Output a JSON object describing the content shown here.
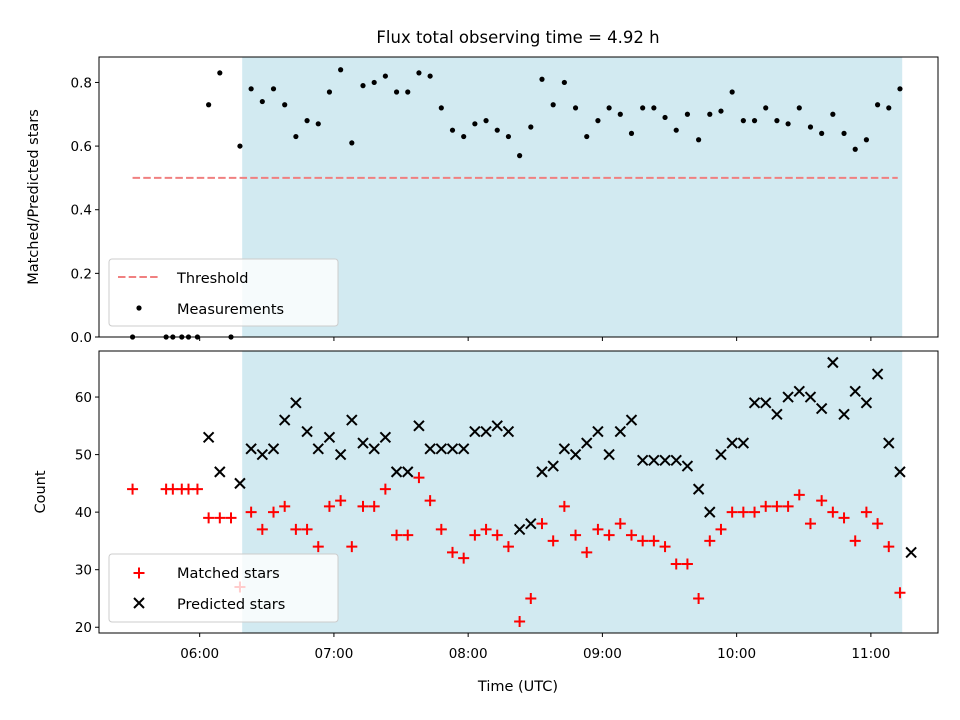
{
  "figure": {
    "title": "Flux total observing time = 4.92 h"
  },
  "chart_data": [
    {
      "type": "scatter",
      "panel": "top",
      "xlabel": "",
      "ylabel": "Matched/Predicted stars",
      "ylim": [
        0,
        0.88
      ],
      "yticks": [
        0.0,
        0.2,
        0.4,
        0.6,
        0.8
      ],
      "ytick_labels": [
        "0.0",
        "0.2",
        "0.4",
        "0.6",
        "0.8"
      ],
      "shaded_interval": {
        "x": [
          "06:19",
          "11:14"
        ],
        "color": "#add8e6"
      },
      "threshold": {
        "name": "Threshold",
        "y": 0.5,
        "x": [
          "05:30",
          "11:12"
        ],
        "color": "#f08080",
        "style": "dashed"
      },
      "legend": {
        "position": "lower-left",
        "entries": [
          "Threshold",
          "Measurements"
        ]
      },
      "series": [
        {
          "name": "Measurements",
          "marker": "dot",
          "color": "#000000",
          "points": [
            [
              "05:30",
              0.0
            ],
            [
              "05:45",
              0.0
            ],
            [
              "05:48",
              0.0
            ],
            [
              "05:52",
              0.0
            ],
            [
              "05:55",
              0.0
            ],
            [
              "05:59",
              0.0
            ],
            [
              "06:04",
              0.73
            ],
            [
              "06:09",
              0.83
            ],
            [
              "06:14",
              0.0
            ],
            [
              "06:18",
              0.6
            ],
            [
              "06:23",
              0.78
            ],
            [
              "06:28",
              0.74
            ],
            [
              "06:33",
              0.78
            ],
            [
              "06:38",
              0.73
            ],
            [
              "06:43",
              0.63
            ],
            [
              "06:48",
              0.68
            ],
            [
              "06:53",
              0.67
            ],
            [
              "06:58",
              0.77
            ],
            [
              "07:03",
              0.84
            ],
            [
              "07:08",
              0.61
            ],
            [
              "07:13",
              0.79
            ],
            [
              "07:18",
              0.8
            ],
            [
              "07:23",
              0.82
            ],
            [
              "07:28",
              0.77
            ],
            [
              "07:33",
              0.77
            ],
            [
              "07:38",
              0.83
            ],
            [
              "07:43",
              0.82
            ],
            [
              "07:48",
              0.72
            ],
            [
              "07:53",
              0.65
            ],
            [
              "07:58",
              0.63
            ],
            [
              "08:03",
              0.67
            ],
            [
              "08:08",
              0.68
            ],
            [
              "08:13",
              0.65
            ],
            [
              "08:18",
              0.63
            ],
            [
              "08:23",
              0.57
            ],
            [
              "08:28",
              0.66
            ],
            [
              "08:33",
              0.81
            ],
            [
              "08:38",
              0.73
            ],
            [
              "08:43",
              0.8
            ],
            [
              "08:48",
              0.72
            ],
            [
              "08:53",
              0.63
            ],
            [
              "08:58",
              0.68
            ],
            [
              "09:03",
              0.72
            ],
            [
              "09:08",
              0.7
            ],
            [
              "09:13",
              0.64
            ],
            [
              "09:18",
              0.72
            ],
            [
              "09:23",
              0.72
            ],
            [
              "09:28",
              0.69
            ],
            [
              "09:33",
              0.65
            ],
            [
              "09:38",
              0.7
            ],
            [
              "09:43",
              0.62
            ],
            [
              "09:48",
              0.7
            ],
            [
              "09:53",
              0.71
            ],
            [
              "09:58",
              0.77
            ],
            [
              "10:03",
              0.68
            ],
            [
              "10:08",
              0.68
            ],
            [
              "10:13",
              0.72
            ],
            [
              "10:18",
              0.68
            ],
            [
              "10:23",
              0.67
            ],
            [
              "10:28",
              0.72
            ],
            [
              "10:33",
              0.66
            ],
            [
              "10:38",
              0.64
            ],
            [
              "10:43",
              0.7
            ],
            [
              "10:48",
              0.64
            ],
            [
              "10:53",
              0.59
            ],
            [
              "10:58",
              0.62
            ],
            [
              "11:03",
              0.73
            ],
            [
              "11:08",
              0.72
            ],
            [
              "11:13",
              0.78
            ]
          ]
        }
      ]
    },
    {
      "type": "scatter",
      "panel": "bottom",
      "xlabel": "Time (UTC)",
      "ylabel": "Count",
      "xlim": [
        "05:15",
        "11:30"
      ],
      "ylim": [
        19,
        68
      ],
      "xticks": [
        "06:00",
        "07:00",
        "08:00",
        "09:00",
        "10:00",
        "11:00"
      ],
      "yticks": [
        20,
        30,
        40,
        50,
        60
      ],
      "ytick_labels": [
        "20",
        "30",
        "40",
        "50",
        "60"
      ],
      "shaded_interval": {
        "x": [
          "06:19",
          "11:14"
        ],
        "color": "#add8e6"
      },
      "legend": {
        "position": "lower-left",
        "entries": [
          "Matched stars",
          "Predicted stars"
        ]
      },
      "series": [
        {
          "name": "Matched stars",
          "marker": "plus",
          "color": "#ff0000",
          "points": [
            [
              "05:30",
              44
            ],
            [
              "05:45",
              44
            ],
            [
              "05:48",
              44
            ],
            [
              "05:52",
              44
            ],
            [
              "05:55",
              44
            ],
            [
              "05:59",
              44
            ],
            [
              "06:04",
              39
            ],
            [
              "06:09",
              39
            ],
            [
              "06:14",
              39
            ],
            [
              "06:18",
              27
            ],
            [
              "06:23",
              40
            ],
            [
              "06:28",
              37
            ],
            [
              "06:33",
              40
            ],
            [
              "06:38",
              41
            ],
            [
              "06:43",
              37
            ],
            [
              "06:48",
              37
            ],
            [
              "06:53",
              34
            ],
            [
              "06:58",
              41
            ],
            [
              "07:03",
              42
            ],
            [
              "07:08",
              34
            ],
            [
              "07:13",
              41
            ],
            [
              "07:18",
              41
            ],
            [
              "07:23",
              44
            ],
            [
              "07:28",
              36
            ],
            [
              "07:33",
              36
            ],
            [
              "07:38",
              46
            ],
            [
              "07:43",
              42
            ],
            [
              "07:48",
              37
            ],
            [
              "07:53",
              33
            ],
            [
              "07:58",
              32
            ],
            [
              "08:03",
              36
            ],
            [
              "08:08",
              37
            ],
            [
              "08:13",
              36
            ],
            [
              "08:18",
              34
            ],
            [
              "08:23",
              21
            ],
            [
              "08:28",
              25
            ],
            [
              "08:33",
              38
            ],
            [
              "08:38",
              35
            ],
            [
              "08:43",
              41
            ],
            [
              "08:48",
              36
            ],
            [
              "08:53",
              33
            ],
            [
              "08:58",
              37
            ],
            [
              "09:03",
              36
            ],
            [
              "09:08",
              38
            ],
            [
              "09:13",
              36
            ],
            [
              "09:18",
              35
            ],
            [
              "09:23",
              35
            ],
            [
              "09:28",
              34
            ],
            [
              "09:33",
              31
            ],
            [
              "09:38",
              31
            ],
            [
              "09:43",
              25
            ],
            [
              "09:48",
              35
            ],
            [
              "09:53",
              37
            ],
            [
              "09:58",
              40
            ],
            [
              "10:03",
              40
            ],
            [
              "10:08",
              40
            ],
            [
              "10:13",
              41
            ],
            [
              "10:18",
              41
            ],
            [
              "10:23",
              41
            ],
            [
              "10:28",
              43
            ],
            [
              "10:33",
              38
            ],
            [
              "10:38",
              42
            ],
            [
              "10:43",
              40
            ],
            [
              "10:48",
              39
            ],
            [
              "10:53",
              35
            ],
            [
              "10:58",
              40
            ],
            [
              "11:03",
              38
            ],
            [
              "11:08",
              34
            ],
            [
              "11:13",
              26
            ]
          ]
        },
        {
          "name": "Predicted stars",
          "marker": "x",
          "color": "#000000",
          "points": [
            [
              "06:04",
              53
            ],
            [
              "06:09",
              47
            ],
            [
              "06:18",
              45
            ],
            [
              "06:23",
              51
            ],
            [
              "06:28",
              50
            ],
            [
              "06:33",
              51
            ],
            [
              "06:38",
              56
            ],
            [
              "06:43",
              59
            ],
            [
              "06:48",
              54
            ],
            [
              "06:53",
              51
            ],
            [
              "06:58",
              53
            ],
            [
              "07:03",
              50
            ],
            [
              "07:08",
              56
            ],
            [
              "07:13",
              52
            ],
            [
              "07:18",
              51
            ],
            [
              "07:23",
              53
            ],
            [
              "07:28",
              47
            ],
            [
              "07:33",
              47
            ],
            [
              "07:38",
              55
            ],
            [
              "07:43",
              51
            ],
            [
              "07:48",
              51
            ],
            [
              "07:53",
              51
            ],
            [
              "07:58",
              51
            ],
            [
              "08:03",
              54
            ],
            [
              "08:08",
              54
            ],
            [
              "08:13",
              55
            ],
            [
              "08:18",
              54
            ],
            [
              "08:23",
              37
            ],
            [
              "08:28",
              38
            ],
            [
              "08:33",
              47
            ],
            [
              "08:38",
              48
            ],
            [
              "08:43",
              51
            ],
            [
              "08:48",
              50
            ],
            [
              "08:53",
              52
            ],
            [
              "08:58",
              54
            ],
            [
              "09:03",
              50
            ],
            [
              "09:08",
              54
            ],
            [
              "09:13",
              56
            ],
            [
              "09:18",
              49
            ],
            [
              "09:23",
              49
            ],
            [
              "09:28",
              49
            ],
            [
              "09:33",
              49
            ],
            [
              "09:38",
              48
            ],
            [
              "09:43",
              44
            ],
            [
              "09:48",
              40
            ],
            [
              "09:53",
              50
            ],
            [
              "09:58",
              52
            ],
            [
              "10:03",
              52
            ],
            [
              "10:08",
              59
            ],
            [
              "10:13",
              59
            ],
            [
              "10:18",
              57
            ],
            [
              "10:23",
              60
            ],
            [
              "10:28",
              61
            ],
            [
              "10:33",
              60
            ],
            [
              "10:38",
              58
            ],
            [
              "10:43",
              66
            ],
            [
              "10:48",
              57
            ],
            [
              "10:53",
              61
            ],
            [
              "10:58",
              59
            ],
            [
              "11:03",
              64
            ],
            [
              "11:08",
              52
            ],
            [
              "11:13",
              47
            ],
            [
              "11:18",
              33
            ]
          ]
        }
      ]
    }
  ]
}
